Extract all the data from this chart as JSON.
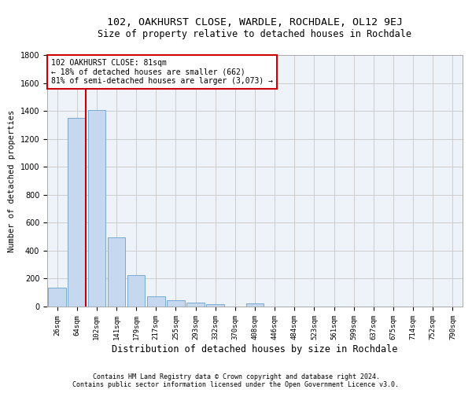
{
  "title1": "102, OAKHURST CLOSE, WARDLE, ROCHDALE, OL12 9EJ",
  "title2": "Size of property relative to detached houses in Rochdale",
  "xlabel": "Distribution of detached houses by size in Rochdale",
  "ylabel": "Number of detached properties",
  "bar_labels": [
    "26sqm",
    "64sqm",
    "102sqm",
    "141sqm",
    "179sqm",
    "217sqm",
    "255sqm",
    "293sqm",
    "332sqm",
    "370sqm",
    "408sqm",
    "446sqm",
    "484sqm",
    "523sqm",
    "561sqm",
    "599sqm",
    "637sqm",
    "675sqm",
    "714sqm",
    "752sqm",
    "790sqm"
  ],
  "bar_values": [
    135,
    1350,
    1405,
    495,
    225,
    75,
    45,
    28,
    15,
    0,
    20,
    0,
    0,
    0,
    0,
    0,
    0,
    0,
    0,
    0,
    0
  ],
  "bar_color": "#c5d8f0",
  "bar_edge_color": "#7aaad0",
  "annotation_text": "102 OAKHURST CLOSE: 81sqm\n← 18% of detached houses are smaller (662)\n81% of semi-detached houses are larger (3,073) →",
  "annotation_box_facecolor": "#ffffff",
  "annotation_box_edgecolor": "#cc0000",
  "vline_color": "#cc0000",
  "grid_color": "#cccccc",
  "footer1": "Contains HM Land Registry data © Crown copyright and database right 2024.",
  "footer2": "Contains public sector information licensed under the Open Government Licence v3.0.",
  "ylim": [
    0,
    1800
  ],
  "background_color": "#eef2f9",
  "title1_fontsize": 9.5,
  "title2_fontsize": 8.5,
  "ylabel_fontsize": 7.5,
  "xlabel_fontsize": 8.5,
  "tick_fontsize": 6.5,
  "annot_fontsize": 7.0,
  "footer_fontsize": 6.0
}
